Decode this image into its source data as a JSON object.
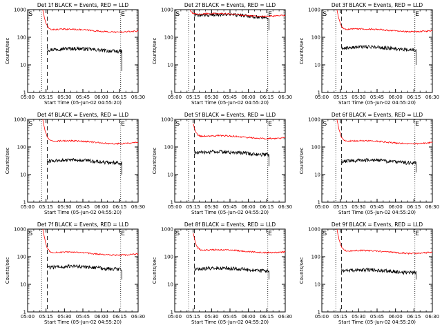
{
  "chart_data": [
    {
      "type": "line",
      "title": "Det 1f BLACK = Events, RED = LLD",
      "xlabel": "Start Time (05-Jun-02 04:55:20)",
      "ylabel": "Counts/sec",
      "x_ticks": [
        "05:00",
        "05:15",
        "05:30",
        "05:45",
        "06:00",
        "06:15",
        "06:30"
      ],
      "y_ticks": [
        "1",
        "10",
        "100",
        "1000"
      ],
      "y_scale": "log",
      "ylim": [
        1,
        1000
      ],
      "xlim_minutes": [
        0,
        95
      ],
      "markers": {
        "S_minutes": 0,
        "E_minutes": 80,
        "dotted_minutes": [
          12,
          80
        ],
        "dashed_minutes": 17
      },
      "series": [
        {
          "name": "Events",
          "color": "#000000",
          "start_minutes": 17,
          "end_minutes": 81,
          "approx_level": 35,
          "end_drop": 6
        },
        {
          "name": "LLD",
          "color": "#ff0000",
          "start_minutes": 13,
          "end_minutes": 95,
          "approx_level": 175,
          "start_peak": 1000
        }
      ]
    },
    {
      "type": "line",
      "title": "Det 2f BLACK = Events, RED = LLD",
      "xlabel": "Start Time (05-Jun-02 04:55:20)",
      "ylabel": "Counts/sec",
      "x_ticks": [
        "05:00",
        "05:15",
        "05:30",
        "05:45",
        "06:00",
        "06:15",
        "06:30"
      ],
      "y_ticks": [
        "1",
        "10",
        "100",
        "1000"
      ],
      "y_scale": "log",
      "ylim": [
        1,
        1000
      ],
      "xlim_minutes": [
        0,
        95
      ],
      "markers": {
        "S_minutes": 0,
        "E_minutes": 80,
        "dotted_minutes": [
          12,
          80
        ],
        "dashed_minutes": 17
      },
      "series": [
        {
          "name": "Events",
          "color": "#000000",
          "start_minutes": 17,
          "end_minutes": 81,
          "approx_level": 600,
          "end_drop": 180
        },
        {
          "name": "LLD",
          "color": "#ff0000",
          "start_minutes": 13,
          "end_minutes": 95,
          "approx_level": 650,
          "start_peak": 1000
        }
      ]
    },
    {
      "type": "line",
      "title": "Det 3f BLACK = Events, RED = LLD",
      "xlabel": "Start Time (05-Jun-02 04:55:20)",
      "ylabel": "Counts/sec",
      "x_ticks": [
        "05:00",
        "05:15",
        "05:30",
        "05:45",
        "06:00",
        "06:15",
        "06:30"
      ],
      "y_ticks": [
        "1",
        "10",
        "100",
        "1000"
      ],
      "y_scale": "log",
      "ylim": [
        1,
        1000
      ],
      "xlim_minutes": [
        0,
        95
      ],
      "markers": {
        "S_minutes": 0,
        "E_minutes": 80,
        "dotted_minutes": [
          12,
          80
        ],
        "dashed_minutes": 17
      },
      "series": [
        {
          "name": "Events",
          "color": "#000000",
          "start_minutes": 17,
          "end_minutes": 81,
          "approx_level": 40,
          "end_drop": 10
        },
        {
          "name": "LLD",
          "color": "#ff0000",
          "start_minutes": 13,
          "end_minutes": 95,
          "approx_level": 180,
          "start_peak": 1000
        }
      ]
    },
    {
      "type": "line",
      "title": "Det 4f BLACK = Events, RED = LLD",
      "xlabel": "Start Time (05-Jun-02 04:55:20)",
      "ylabel": "Counts/sec",
      "x_ticks": [
        "05:00",
        "05:15",
        "05:30",
        "05:45",
        "06:00",
        "06:15",
        "06:30"
      ],
      "y_ticks": [
        "1",
        "10",
        "100",
        "1000"
      ],
      "y_scale": "log",
      "ylim": [
        1,
        1000
      ],
      "xlim_minutes": [
        0,
        95
      ],
      "markers": {
        "S_minutes": 0,
        "E_minutes": 80,
        "dotted_minutes": [
          12,
          80
        ],
        "dashed_minutes": 17
      },
      "series": [
        {
          "name": "Events",
          "color": "#000000",
          "start_minutes": 17,
          "end_minutes": 81,
          "approx_level": 30,
          "end_drop": 10
        },
        {
          "name": "LLD",
          "color": "#ff0000",
          "start_minutes": 13,
          "end_minutes": 95,
          "approx_level": 150,
          "start_peak": 1000
        }
      ]
    },
    {
      "type": "line",
      "title": "Det 5f BLACK = Events, RED = LLD",
      "xlabel": "Start Time (05-Jun-02 04:55:20)",
      "ylabel": "Counts/sec",
      "x_ticks": [
        "05:00",
        "05:15",
        "05:30",
        "05:45",
        "06:00",
        "06:15",
        "06:30"
      ],
      "y_ticks": [
        "1",
        "10",
        "100",
        "1000"
      ],
      "y_scale": "log",
      "ylim": [
        1,
        1000
      ],
      "xlim_minutes": [
        0,
        95
      ],
      "markers": {
        "S_minutes": 0,
        "E_minutes": 80,
        "dotted_minutes": [
          12,
          80
        ],
        "dashed_minutes": 17
      },
      "series": [
        {
          "name": "Events",
          "color": "#000000",
          "start_minutes": 17,
          "end_minutes": 81,
          "approx_level": 60,
          "end_drop": 20
        },
        {
          "name": "LLD",
          "color": "#ff0000",
          "start_minutes": 16,
          "end_minutes": 95,
          "approx_level": 230,
          "start_peak": 700
        }
      ]
    },
    {
      "type": "line",
      "title": "Det 6f BLACK = Events, RED = LLD",
      "xlabel": "Start Time (05-Jun-02 04:55:20)",
      "ylabel": "Counts/sec",
      "x_ticks": [
        "05:00",
        "05:15",
        "05:30",
        "05:45",
        "06:00",
        "06:15",
        "06:30"
      ],
      "y_ticks": [
        "1",
        "10",
        "100",
        "1000"
      ],
      "y_scale": "log",
      "ylim": [
        1,
        1000
      ],
      "xlim_minutes": [
        0,
        95
      ],
      "markers": {
        "S_minutes": 0,
        "E_minutes": 80,
        "dotted_minutes": [
          12,
          80
        ],
        "dashed_minutes": 17
      },
      "series": [
        {
          "name": "Events",
          "color": "#000000",
          "start_minutes": 17,
          "end_minutes": 81,
          "approx_level": 30,
          "end_drop": 12
        },
        {
          "name": "LLD",
          "color": "#ff0000",
          "start_minutes": 13,
          "end_minutes": 95,
          "approx_level": 150,
          "start_peak": 1000
        }
      ]
    },
    {
      "type": "line",
      "title": "Det 7f BLACK = Events, RED = LLD",
      "xlabel": "Start Time (05-Jun-02 04:55:20)",
      "ylabel": "Counts/sec",
      "x_ticks": [
        "05:00",
        "05:15",
        "05:30",
        "05:45",
        "06:00",
        "06:15",
        "06:30"
      ],
      "y_ticks": [
        "1",
        "10",
        "100",
        "1000"
      ],
      "y_scale": "log",
      "ylim": [
        1,
        1000
      ],
      "xlim_minutes": [
        0,
        95
      ],
      "markers": {
        "S_minutes": 0,
        "E_minutes": 80,
        "dotted_minutes": [
          12,
          80
        ],
        "dashed_minutes": 17
      },
      "series": [
        {
          "name": "Events",
          "color": "#000000",
          "start_minutes": 17,
          "end_minutes": 81,
          "approx_level": 40,
          "end_drop": 15
        },
        {
          "name": "LLD",
          "color": "#ff0000",
          "start_minutes": 13,
          "end_minutes": 95,
          "approx_level": 130,
          "start_peak": 1000
        }
      ]
    },
    {
      "type": "line",
      "title": "Det 8f BLACK = Events, RED = LLD",
      "xlabel": "Start Time (05-Jun-02 04:55:20)",
      "ylabel": "Counts/sec",
      "x_ticks": [
        "05:00",
        "05:15",
        "05:30",
        "05:45",
        "06:00",
        "06:15",
        "06:30"
      ],
      "y_ticks": [
        "1",
        "10",
        "100",
        "1000"
      ],
      "y_scale": "log",
      "ylim": [
        1,
        1000
      ],
      "xlim_minutes": [
        0,
        95
      ],
      "markers": {
        "S_minutes": 0,
        "E_minutes": 80,
        "dotted_minutes": [
          12,
          80
        ],
        "dashed_minutes": 17
      },
      "series": [
        {
          "name": "Events",
          "color": "#000000",
          "start_minutes": 17,
          "end_minutes": 81,
          "approx_level": 35,
          "end_drop": 15
        },
        {
          "name": "LLD",
          "color": "#ff0000",
          "start_minutes": 16,
          "end_minutes": 95,
          "approx_level": 160,
          "start_peak": 700
        }
      ]
    },
    {
      "type": "line",
      "title": "Det 9f BLACK = Events, RED = LLD",
      "xlabel": "Start Time (05-Jun-02 04:55:20)",
      "ylabel": "Counts/sec",
      "x_ticks": [
        "05:00",
        "05:15",
        "05:30",
        "05:45",
        "06:00",
        "06:15",
        "06:30"
      ],
      "y_ticks": [
        "1",
        "10",
        "100",
        "1000"
      ],
      "y_scale": "log",
      "ylim": [
        1,
        1000
      ],
      "xlim_minutes": [
        0,
        95
      ],
      "markers": {
        "S_minutes": 0,
        "E_minutes": 80,
        "dotted_minutes": [
          12,
          80
        ],
        "dashed_minutes": 17
      },
      "series": [
        {
          "name": "Events",
          "color": "#000000",
          "start_minutes": 17,
          "end_minutes": 81,
          "approx_level": 30,
          "end_drop": 15
        },
        {
          "name": "LLD",
          "color": "#ff0000",
          "start_minutes": 13,
          "end_minutes": 95,
          "approx_level": 150,
          "start_peak": 1000
        }
      ]
    }
  ],
  "marker_labels": {
    "start": "S",
    "end": "E"
  }
}
